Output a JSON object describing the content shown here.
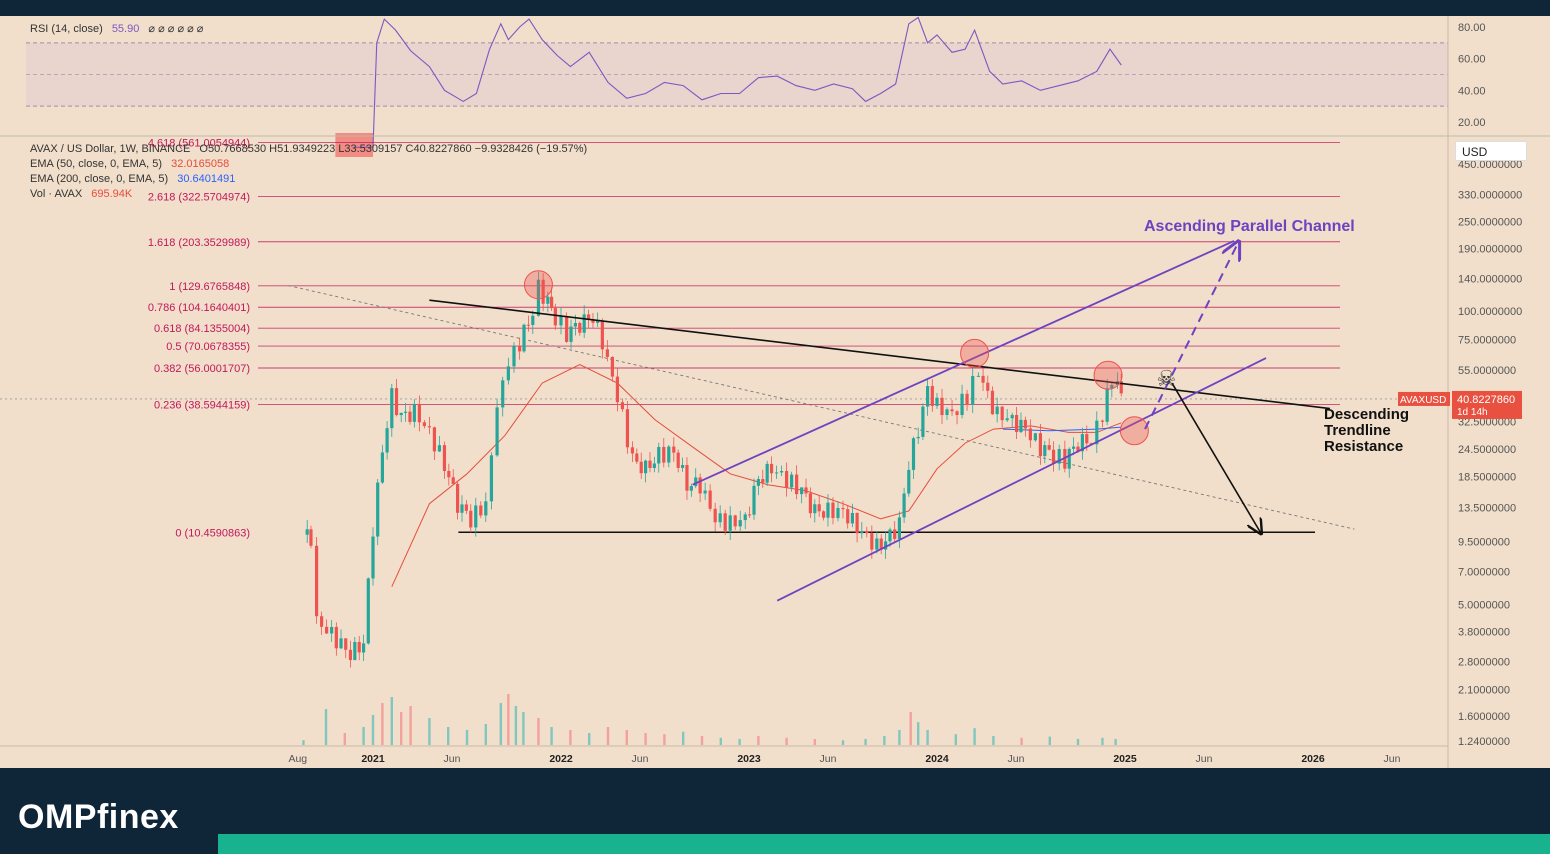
{
  "rsi": {
    "label": "RSI (14, close)",
    "value": "55.90",
    "dots": "⌀ ⌀ ⌀ ⌀ ⌀ ⌀",
    "ticks": [
      "80.00",
      "60.00",
      "40.00",
      "20.00"
    ],
    "color": "#7e57c2"
  },
  "legend": {
    "symbol": "AVAX / US Dollar, 1W, BINANCE",
    "ohlc": "O50.7668530  H51.9349223  L33.5309157  C40.8227860  −9.9328426 (−19.57%)",
    "ema50_label": "EMA (50, close, 0, EMA, 5)",
    "ema50_value": "32.0165058",
    "ema200_label": "EMA (200, close, 0, EMA, 5)",
    "ema200_value": "30.6401491",
    "vol_label": "Vol · AVAX",
    "vol_value": "695.94K"
  },
  "currency": "USD",
  "price_tag": {
    "symbol": "AVAXUSD",
    "price": "40.8227860",
    "countdown": "1d 14h",
    "color": "#e8503f"
  },
  "annotations": {
    "channel": "Ascending Parallel Channel",
    "trendline": [
      "Descending",
      "Trendline",
      "Resistance"
    ]
  },
  "logo": "OMPfinex",
  "colors": {
    "up": "#26a69a",
    "down": "#ef5350",
    "fib": "#c2185b",
    "channel": "#6f42c1",
    "ema": "#e74c3c"
  },
  "chart_data": {
    "type": "candlestick",
    "y_scale": "log",
    "ylim": [
      1.24,
      450
    ],
    "x_ticks": [
      "Aug",
      "2021",
      "Jun",
      "2022",
      "Jun",
      "2023",
      "Jun",
      "2024",
      "Jun",
      "2025",
      "Jun",
      "2026",
      "Jun"
    ],
    "y_ticks": [
      "450.0000000",
      "330.0000000",
      "250.0000000",
      "190.0000000",
      "140.0000000",
      "100.0000000",
      "75.0000000",
      "55.0000000",
      "32.5000000",
      "24.5000000",
      "18.5000000",
      "13.5000000",
      "9.5000000",
      "7.0000000",
      "5.0000000",
      "3.8000000",
      "2.8000000",
      "2.1000000",
      "1.6000000",
      "1.2400000"
    ],
    "fib_levels": [
      {
        "label": "4.618 (561.0054944)",
        "value": 561.0054944
      },
      {
        "label": "2.618 (322.5704974)",
        "value": 322.5704974
      },
      {
        "label": "1.618 (203.3529989)",
        "value": 203.3529989
      },
      {
        "label": "1 (129.6765848)",
        "value": 129.6765848
      },
      {
        "label": "0.786 (104.1640401)",
        "value": 104.1640401
      },
      {
        "label": "0.618 (84.1355004)",
        "value": 84.1355004
      },
      {
        "label": "0.5 (70.0678355)",
        "value": 70.0678355
      },
      {
        "label": "0.382 (56.0001707)",
        "value": 56.0001707
      },
      {
        "label": "0.236 (38.5944159)",
        "value": 38.5944159
      },
      {
        "label": "0 (10.4590863)",
        "value": 10.4590863
      }
    ],
    "close_path": [
      [
        2020.63,
        10.2
      ],
      [
        2020.67,
        9.8
      ],
      [
        2020.7,
        4.2
      ],
      [
        2020.78,
        3.7
      ],
      [
        2020.88,
        3.0
      ],
      [
        2020.95,
        3.4
      ],
      [
        2021.0,
        11
      ],
      [
        2021.05,
        24
      ],
      [
        2021.1,
        42
      ],
      [
        2021.15,
        34
      ],
      [
        2021.22,
        36
      ],
      [
        2021.3,
        29
      ],
      [
        2021.38,
        21
      ],
      [
        2021.45,
        14
      ],
      [
        2021.52,
        12
      ],
      [
        2021.6,
        14
      ],
      [
        2021.66,
        38
      ],
      [
        2021.72,
        60
      ],
      [
        2021.78,
        72
      ],
      [
        2021.85,
        100
      ],
      [
        2021.88,
        130
      ],
      [
        2021.93,
        108
      ],
      [
        2021.97,
        95
      ],
      [
        2022.03,
        80
      ],
      [
        2022.1,
        88
      ],
      [
        2022.17,
        95
      ],
      [
        2022.22,
        73
      ],
      [
        2022.3,
        42
      ],
      [
        2022.38,
        22
      ],
      [
        2022.45,
        20
      ],
      [
        2022.52,
        23
      ],
      [
        2022.6,
        24
      ],
      [
        2022.67,
        17
      ],
      [
        2022.74,
        17
      ],
      [
        2022.82,
        12
      ],
      [
        2022.9,
        11.5
      ],
      [
        2022.98,
        12
      ],
      [
        2023.05,
        18
      ],
      [
        2023.12,
        20
      ],
      [
        2023.2,
        18
      ],
      [
        2023.28,
        16
      ],
      [
        2023.35,
        13
      ],
      [
        2023.42,
        13
      ],
      [
        2023.5,
        13
      ],
      [
        2023.6,
        10.5
      ],
      [
        2023.68,
        9.0
      ],
      [
        2023.75,
        10
      ],
      [
        2023.8,
        11.5
      ],
      [
        2023.85,
        21
      ],
      [
        2023.9,
        30
      ],
      [
        2023.95,
        45
      ],
      [
        2024.0,
        38
      ],
      [
        2024.08,
        35
      ],
      [
        2024.16,
        42
      ],
      [
        2024.22,
        55
      ],
      [
        2024.27,
        42
      ],
      [
        2024.32,
        35
      ],
      [
        2024.4,
        33
      ],
      [
        2024.47,
        30
      ],
      [
        2024.55,
        25
      ],
      [
        2024.62,
        23
      ],
      [
        2024.68,
        22
      ],
      [
        2024.75,
        26
      ],
      [
        2024.82,
        27
      ],
      [
        2024.88,
        35
      ],
      [
        2024.93,
        50
      ],
      [
        2024.96,
        47
      ],
      [
        2024.98,
        40.8
      ]
    ],
    "ema50_path": [
      [
        2021.1,
        6
      ],
      [
        2021.3,
        14
      ],
      [
        2021.5,
        19
      ],
      [
        2021.7,
        28
      ],
      [
        2021.9,
        48
      ],
      [
        2022.1,
        58
      ],
      [
        2022.3,
        48
      ],
      [
        2022.5,
        33
      ],
      [
        2022.7,
        25
      ],
      [
        2022.9,
        19
      ],
      [
        2023.1,
        17
      ],
      [
        2023.3,
        16
      ],
      [
        2023.5,
        14
      ],
      [
        2023.7,
        12
      ],
      [
        2023.85,
        13
      ],
      [
        2024.0,
        20
      ],
      [
        2024.15,
        26
      ],
      [
        2024.3,
        30
      ],
      [
        2024.5,
        31
      ],
      [
        2024.7,
        29
      ],
      [
        2024.85,
        29
      ],
      [
        2024.98,
        32
      ]
    ],
    "ema200_path": [
      [
        2024.35,
        30
      ],
      [
        2024.6,
        29.5
      ],
      [
        2024.85,
        30
      ],
      [
        2024.98,
        30.6
      ]
    ],
    "volume": [
      {
        "x": 2020.63,
        "v": 8
      },
      {
        "x": 2020.75,
        "v": 60
      },
      {
        "x": 2020.85,
        "v": 20
      },
      {
        "x": 2020.95,
        "v": 30
      },
      {
        "x": 2021.0,
        "v": 50
      },
      {
        "x": 2021.05,
        "v": 70
      },
      {
        "x": 2021.1,
        "v": 80
      },
      {
        "x": 2021.15,
        "v": 55
      },
      {
        "x": 2021.2,
        "v": 65
      },
      {
        "x": 2021.3,
        "v": 45
      },
      {
        "x": 2021.4,
        "v": 30
      },
      {
        "x": 2021.5,
        "v": 25
      },
      {
        "x": 2021.6,
        "v": 35
      },
      {
        "x": 2021.68,
        "v": 70
      },
      {
        "x": 2021.72,
        "v": 85
      },
      {
        "x": 2021.76,
        "v": 65
      },
      {
        "x": 2021.8,
        "v": 55
      },
      {
        "x": 2021.88,
        "v": 45
      },
      {
        "x": 2021.95,
        "v": 30
      },
      {
        "x": 2022.05,
        "v": 25
      },
      {
        "x": 2022.15,
        "v": 20
      },
      {
        "x": 2022.25,
        "v": 30
      },
      {
        "x": 2022.35,
        "v": 25
      },
      {
        "x": 2022.45,
        "v": 20
      },
      {
        "x": 2022.55,
        "v": 18
      },
      {
        "x": 2022.65,
        "v": 22
      },
      {
        "x": 2022.75,
        "v": 15
      },
      {
        "x": 2022.85,
        "v": 12
      },
      {
        "x": 2022.95,
        "v": 10
      },
      {
        "x": 2023.05,
        "v": 15
      },
      {
        "x": 2023.2,
        "v": 12
      },
      {
        "x": 2023.35,
        "v": 10
      },
      {
        "x": 2023.5,
        "v": 8
      },
      {
        "x": 2023.62,
        "v": 10
      },
      {
        "x": 2023.72,
        "v": 15
      },
      {
        "x": 2023.8,
        "v": 25
      },
      {
        "x": 2023.86,
        "v": 55
      },
      {
        "x": 2023.9,
        "v": 38
      },
      {
        "x": 2023.95,
        "v": 25
      },
      {
        "x": 2024.1,
        "v": 18
      },
      {
        "x": 2024.2,
        "v": 28
      },
      {
        "x": 2024.3,
        "v": 15
      },
      {
        "x": 2024.45,
        "v": 12
      },
      {
        "x": 2024.6,
        "v": 14
      },
      {
        "x": 2024.75,
        "v": 10
      },
      {
        "x": 2024.88,
        "v": 12
      },
      {
        "x": 2024.95,
        "v": 10
      }
    ],
    "rsi_path": [
      [
        2020.9,
        4
      ],
      [
        2021.0,
        4
      ],
      [
        2021.02,
        70
      ],
      [
        2021.06,
        85
      ],
      [
        2021.12,
        78
      ],
      [
        2021.2,
        65
      ],
      [
        2021.3,
        55
      ],
      [
        2021.38,
        40
      ],
      [
        2021.48,
        33
      ],
      [
        2021.55,
        38
      ],
      [
        2021.62,
        66
      ],
      [
        2021.68,
        82
      ],
      [
        2021.72,
        72
      ],
      [
        2021.78,
        80
      ],
      [
        2021.83,
        85
      ],
      [
        2021.9,
        72
      ],
      [
        2021.98,
        62
      ],
      [
        2022.05,
        55
      ],
      [
        2022.15,
        64
      ],
      [
        2022.25,
        45
      ],
      [
        2022.35,
        35
      ],
      [
        2022.45,
        38
      ],
      [
        2022.55,
        45
      ],
      [
        2022.65,
        43
      ],
      [
        2022.75,
        34
      ],
      [
        2022.85,
        38
      ],
      [
        2022.95,
        38
      ],
      [
        2023.05,
        48
      ],
      [
        2023.15,
        49
      ],
      [
        2023.25,
        43
      ],
      [
        2023.35,
        40
      ],
      [
        2023.45,
        44
      ],
      [
        2023.55,
        41
      ],
      [
        2023.62,
        33
      ],
      [
        2023.7,
        38
      ],
      [
        2023.78,
        44
      ],
      [
        2023.85,
        82
      ],
      [
        2023.9,
        86
      ],
      [
        2023.95,
        70
      ],
      [
        2024.0,
        75
      ],
      [
        2024.08,
        64
      ],
      [
        2024.15,
        66
      ],
      [
        2024.2,
        78
      ],
      [
        2024.28,
        52
      ],
      [
        2024.35,
        44
      ],
      [
        2024.45,
        46
      ],
      [
        2024.55,
        40
      ],
      [
        2024.65,
        43
      ],
      [
        2024.75,
        46
      ],
      [
        2024.85,
        52
      ],
      [
        2024.92,
        66
      ],
      [
        2024.98,
        56
      ]
    ],
    "channel_lines": [
      {
        "from": [
          2022.7,
          17
        ],
        "to": [
          2025.58,
          205
        ]
      },
      {
        "from": [
          2023.15,
          5.2
        ],
        "to": [
          2025.75,
          62
        ]
      }
    ],
    "descending_trendline": {
      "from": [
        2021.3,
        112
      ],
      "to": [
        2026.09,
        37
      ]
    },
    "dotted_trendline": {
      "from": [
        2020.55,
        130
      ],
      "to": [
        2026.22,
        10.8
      ]
    },
    "support_line": {
      "from": [
        2020.55,
        10.46
      ],
      "to": [
        2026.0,
        10.46
      ]
    },
    "projections": {
      "bullish": {
        "from": [
          2025.0,
          30
        ],
        "to": [
          2025.6,
          200
        ]
      },
      "bearish": {
        "from": [
          2025.25,
          48
        ],
        "to": [
          2025.72,
          10.46
        ]
      }
    },
    "highlight_circles": [
      [
        2021.88,
        131
      ],
      [
        2024.2,
        65
      ],
      [
        2024.91,
        52
      ],
      [
        2025.05,
        29.5
      ]
    ],
    "skull_marker": [
      2025.22,
      50
    ]
  }
}
